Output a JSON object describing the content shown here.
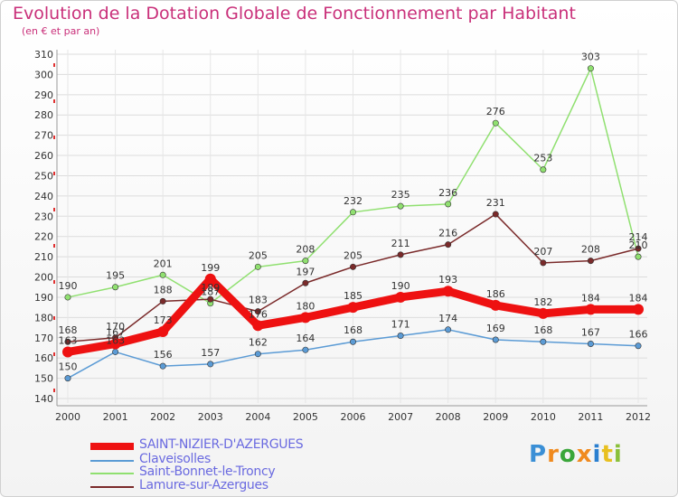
{
  "chart_data": {
    "type": "line",
    "title": "Evolution de la Dotation Globale de Fonctionnement par Habitant",
    "subtitle": "(en € et par an)",
    "categories": [
      "2000",
      "2001",
      "2002",
      "2003",
      "2004",
      "2005",
      "2006",
      "2007",
      "2008",
      "2009",
      "2010",
      "2011",
      "2012"
    ],
    "ylim": [
      140,
      310
    ],
    "yticks": [
      140,
      150,
      160,
      170,
      180,
      190,
      200,
      210,
      220,
      230,
      240,
      250,
      260,
      270,
      280,
      290,
      300,
      310
    ],
    "series": [
      {
        "name": "SAINT-NIZIER-D'AZERGUES",
        "color": "#ee1111",
        "values": [
          163,
          167,
          173,
          199,
          176,
          180,
          185,
          190,
          193,
          186,
          182,
          184,
          184
        ]
      },
      {
        "name": "Claveisolles",
        "color": "#5b9bd5",
        "values": [
          150,
          163,
          156,
          157,
          162,
          164,
          168,
          171,
          174,
          169,
          168,
          167,
          166
        ]
      },
      {
        "name": "Saint-Bonnet-le-Troncy",
        "color": "#90e070",
        "values": [
          190,
          195,
          201,
          187,
          205,
          208,
          232,
          235,
          236,
          276,
          253,
          303,
          210
        ]
      },
      {
        "name": "Lamure-sur-Azergues",
        "color": "#7a2a2a",
        "values": [
          168,
          170,
          188,
          189,
          183,
          197,
          205,
          211,
          216,
          231,
          207,
          208,
          214
        ]
      }
    ],
    "legend_text_color": "#6a6ae0"
  },
  "logo": {
    "text": "Proxiti"
  }
}
